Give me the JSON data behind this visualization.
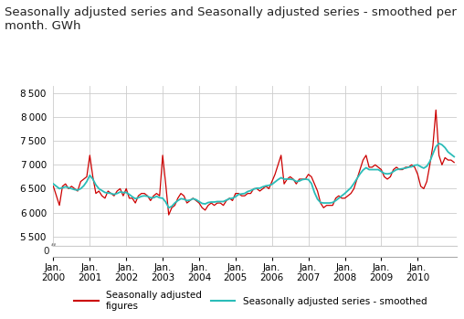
{
  "title": "Seasonally adjusted series and Seasonally adjusted series - smoothed per\nmonth. GWh",
  "title_fontsize": 9.5,
  "background_color": "#ffffff",
  "grid_color": "#cccccc",
  "line1_color": "#cc0000",
  "line2_color": "#2abcb8",
  "line1_label": "Seasonally adjusted\nfigures",
  "line2_label": "Seasonally adjusted series - smoothed",
  "legend_fontsize": 7.5,
  "tick_fontsize": 7.5,
  "ylim_main": [
    5300,
    8600
  ],
  "yticks_main": [
    5500,
    6000,
    6500,
    7000,
    7500,
    8000,
    8500
  ],
  "ylim_break": [
    0,
    8600
  ],
  "sa_values": [
    6550,
    6350,
    6150,
    6550,
    6600,
    6500,
    6550,
    6500,
    6450,
    6650,
    6700,
    6750,
    7200,
    6750,
    6400,
    6450,
    6350,
    6300,
    6450,
    6400,
    6350,
    6450,
    6500,
    6350,
    6500,
    6300,
    6300,
    6200,
    6350,
    6400,
    6400,
    6350,
    6250,
    6350,
    6400,
    6350,
    7200,
    6600,
    5950,
    6100,
    6150,
    6300,
    6400,
    6350,
    6200,
    6250,
    6300,
    6250,
    6200,
    6100,
    6050,
    6150,
    6200,
    6150,
    6200,
    6200,
    6150,
    6250,
    6300,
    6250,
    6400,
    6400,
    6350,
    6350,
    6400,
    6400,
    6500,
    6500,
    6450,
    6500,
    6550,
    6500,
    6650,
    6800,
    7000,
    7200,
    6600,
    6700,
    6750,
    6700,
    6600,
    6700,
    6700,
    6700,
    6800,
    6750,
    6600,
    6450,
    6200,
    6100,
    6150,
    6150,
    6150,
    6300,
    6350,
    6300,
    6300,
    6350,
    6400,
    6500,
    6700,
    6900,
    7100,
    7200,
    6950,
    6950,
    7000,
    6950,
    6900,
    6750,
    6700,
    6750,
    6900,
    6950,
    6900,
    6900,
    6950,
    6950,
    7000,
    6950,
    6800,
    6550,
    6500,
    6650,
    7000,
    7400,
    8150,
    7200,
    7000,
    7150,
    7100,
    7100,
    7050
  ],
  "trend_values": [
    6600,
    6550,
    6500,
    6520,
    6540,
    6520,
    6500,
    6480,
    6470,
    6500,
    6560,
    6650,
    6780,
    6700,
    6580,
    6500,
    6460,
    6420,
    6410,
    6400,
    6380,
    6400,
    6430,
    6420,
    6420,
    6380,
    6330,
    6290,
    6310,
    6340,
    6350,
    6340,
    6310,
    6310,
    6340,
    6310,
    6300,
    6220,
    6100,
    6130,
    6200,
    6250,
    6290,
    6280,
    6250,
    6260,
    6290,
    6270,
    6230,
    6190,
    6180,
    6210,
    6220,
    6220,
    6230,
    6230,
    6230,
    6260,
    6290,
    6300,
    6330,
    6380,
    6390,
    6400,
    6440,
    6460,
    6490,
    6510,
    6510,
    6540,
    6560,
    6570,
    6590,
    6640,
    6690,
    6730,
    6700,
    6700,
    6700,
    6690,
    6650,
    6660,
    6690,
    6700,
    6690,
    6610,
    6420,
    6280,
    6210,
    6200,
    6200,
    6200,
    6210,
    6250,
    6300,
    6350,
    6400,
    6460,
    6520,
    6610,
    6710,
    6810,
    6890,
    6940,
    6900,
    6900,
    6900,
    6900,
    6860,
    6820,
    6810,
    6820,
    6860,
    6900,
    6910,
    6920,
    6930,
    6950,
    6960,
    6990,
    7000,
    6960,
    6930,
    6970,
    7070,
    7230,
    7380,
    7450,
    7420,
    7360,
    7270,
    7220,
    7170
  ]
}
